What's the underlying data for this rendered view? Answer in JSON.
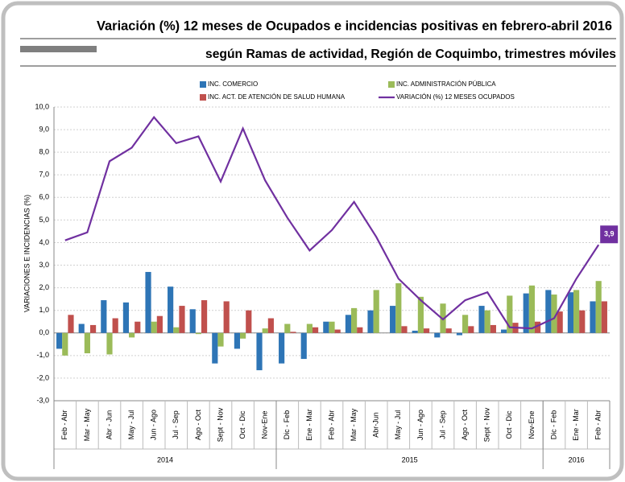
{
  "chart_data": {
    "type": "bar_line",
    "title": "Variación (%) 12 meses de Ocupados e incidencias positivas en febrero-abril 2016",
    "subtitle": "según Ramas de actividad, Región de Coquimbo, trimestres móviles",
    "y_label": "VARIACIONES E INCIDENCIAS (%)",
    "categories": [
      "Feb - Abr",
      "Mar - May",
      "Abr - Jun",
      "May - Jul",
      "Jun - Ago",
      "Jul - Sep",
      "Ago - Oct",
      "Sept - Nov",
      "Oct - Dic",
      "Nov-Ene",
      "Dic - Feb",
      "Ene - Mar",
      "Feb - Abr",
      "Mar - May",
      "Abr-Jun",
      "May - Jul",
      "Jun - Ago",
      "Jul - Sep",
      "Ago - Oct",
      "Sept - Nov",
      "Oct - Dic",
      "Nov-Ene",
      "Dic - Feb",
      "Ene - Mar",
      "Feb - Abr"
    ],
    "groups": [
      {
        "label": "2014",
        "count": 10
      },
      {
        "label": "2015",
        "count": 12
      },
      {
        "label": "2016",
        "count": 3
      }
    ],
    "series": [
      {
        "name": "INC. COMERCIO",
        "type": "bar",
        "color": "#2e75b6",
        "values": [
          -0.7,
          0.4,
          1.45,
          1.35,
          2.7,
          2.05,
          1.05,
          -1.35,
          -0.7,
          -1.65,
          -1.35,
          -1.15,
          0.5,
          0.8,
          1.0,
          1.2,
          0.1,
          -0.2,
          -0.1,
          1.2,
          0.15,
          1.75,
          1.9,
          1.8,
          1.4
        ]
      },
      {
        "name": "INC. ADMINISTRACIÓN PÚBLICA",
        "type": "bar",
        "color": "#9bbb59",
        "values": [
          -1.0,
          -0.9,
          -0.95,
          -0.2,
          0.5,
          0.25,
          -0.05,
          -0.6,
          -0.25,
          0.2,
          0.4,
          0.4,
          0.5,
          1.1,
          1.9,
          2.2,
          1.6,
          1.3,
          0.8,
          1.0,
          1.65,
          2.1,
          1.7,
          1.9,
          2.3
        ]
      },
      {
        "name": "INC. ACT. DE ATENCIÓN DE SALUD HUMANA",
        "type": "bar",
        "color": "#c0504d",
        "values": [
          0.8,
          0.35,
          0.65,
          0.5,
          0.75,
          1.2,
          1.45,
          1.4,
          1.0,
          0.65,
          0.05,
          0.25,
          0.15,
          0.25,
          0,
          0.3,
          0.2,
          0.2,
          0.3,
          0.35,
          0.45,
          0.5,
          0.95,
          1.0,
          1.4
        ]
      },
      {
        "name": "VARIACIÓN (%) 12 MESES OCUPADOS",
        "type": "line",
        "color": "#7030a0",
        "values": [
          4.1,
          4.45,
          7.6,
          8.2,
          9.55,
          8.4,
          8.7,
          6.7,
          9.05,
          6.75,
          5.1,
          3.65,
          4.55,
          5.8,
          4.25,
          2.4,
          1.45,
          0.6,
          1.45,
          1.8,
          0.25,
          0.2,
          0.65,
          2.4,
          3.9
        ],
        "value_labels": [
          null,
          null,
          null,
          null,
          null,
          null,
          null,
          null,
          null,
          null,
          null,
          null,
          null,
          null,
          null,
          null,
          null,
          null,
          null,
          null,
          null,
          null,
          null,
          null,
          "3,9"
        ]
      }
    ],
    "ylim": [
      -3,
      10
    ],
    "yticks": [
      {
        "value": -3,
        "label": "-3,0"
      },
      {
        "value": -2,
        "label": "-2,0"
      },
      {
        "value": -1,
        "label": "-1,0"
      },
      {
        "value": 0,
        "label": "0,0"
      },
      {
        "value": 1,
        "label": "1,0"
      },
      {
        "value": 2,
        "label": "2,0"
      },
      {
        "value": 3,
        "label": "3,0"
      },
      {
        "value": 4,
        "label": "4,0"
      },
      {
        "value": 5,
        "label": "5,0"
      },
      {
        "value": 6,
        "label": "6,0"
      },
      {
        "value": 7,
        "label": "7,0"
      },
      {
        "value": 8,
        "label": "8,0"
      },
      {
        "value": 9,
        "label": "9,0"
      },
      {
        "value": 10,
        "label": "10,0"
      }
    ],
    "grid": true
  }
}
